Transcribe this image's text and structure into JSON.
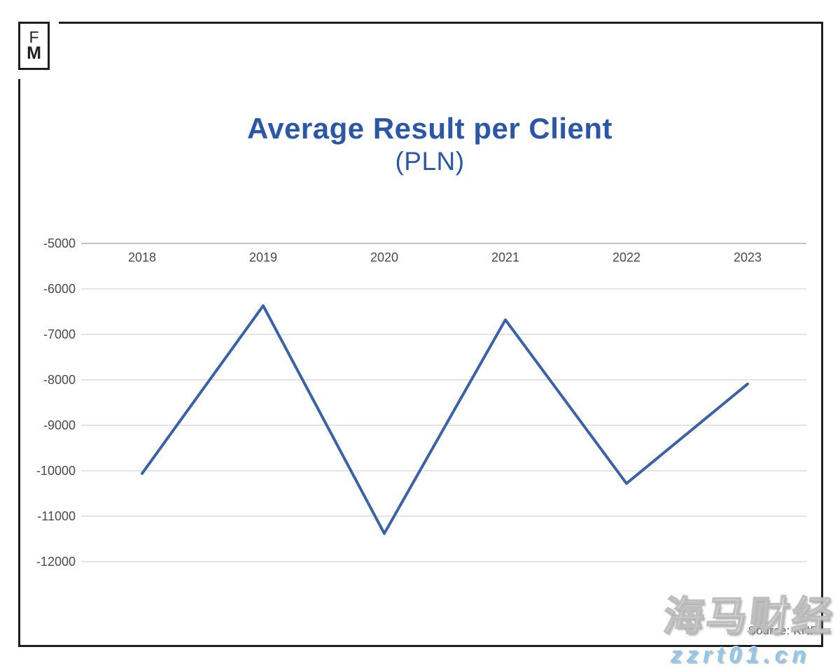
{
  "logo": {
    "line1": "F",
    "line2": "M"
  },
  "title": {
    "text": "Average Result per Client",
    "subtitle": "(PLN)",
    "color": "#2b57a8"
  },
  "source": {
    "text": "Source: KNF"
  },
  "watermark": {
    "line1": "海马财经",
    "line2": "zzrt01.cn",
    "url_color": "#8ec8ef"
  },
  "chart_data": {
    "type": "line",
    "title": "Average Result per Client",
    "subtitle": "(PLN)",
    "categories": [
      "2018",
      "2019",
      "2020",
      "2021",
      "2022",
      "2023"
    ],
    "values": [
      -10060,
      -6370,
      -11380,
      -6680,
      -10280,
      -8090
    ],
    "series_name": "Average result per client (PLN)",
    "ylim": [
      -12000,
      -5000
    ],
    "ytick_step": 1000,
    "yticks": [
      -5000,
      -6000,
      -7000,
      -8000,
      -9000,
      -10000,
      -11000,
      -12000
    ],
    "grid": true,
    "legend": "none",
    "line_color": "#3a62a7",
    "gridline_color": "#e4e4e4",
    "top_gridline_color": "#c2c2c2",
    "axis_label_color": "#4a4a4a"
  }
}
